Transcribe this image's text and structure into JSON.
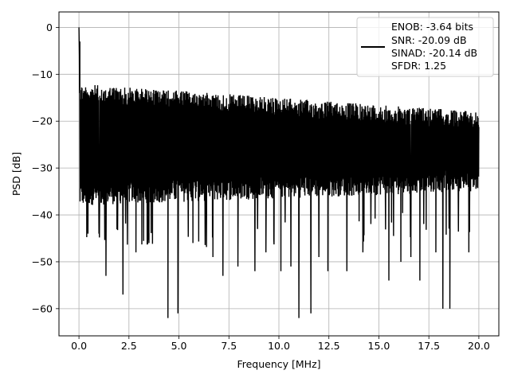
{
  "chart_data": {
    "type": "line",
    "title": "",
    "xlabel": "Frequency [MHz]",
    "ylabel": "PSD [dB]",
    "xlim": [
      -1.0,
      21.0
    ],
    "ylim": [
      -65.8,
      3.3
    ],
    "xticks": [
      0.0,
      2.5,
      5.0,
      7.5,
      10.0,
      12.5,
      15.0,
      17.5,
      20.0
    ],
    "xtick_labels": [
      "0.0",
      "2.5",
      "5.0",
      "7.5",
      "10.0",
      "12.5",
      "15.0",
      "17.5",
      "20.0"
    ],
    "yticks": [
      0,
      -10,
      -20,
      -30,
      -40,
      -50,
      -60
    ],
    "ytick_labels": [
      "0",
      "−10",
      "−20",
      "−30",
      "−40",
      "−50",
      "−60"
    ],
    "grid": true,
    "legend_position": "top-right",
    "legend_entries": [
      "ENOB: -3.64 bits",
      "SNR: -20.09 dB",
      "SINAD: -20.14 dB",
      "SFDR: 1.25"
    ],
    "series": [
      {
        "color": "#000000",
        "peak": {
          "x": 0.0,
          "y": 0.0
        },
        "upper_envelope_db": {
          "start": -12.0,
          "end": -18.0
        },
        "lower_envelope_db": {
          "start": -38.0,
          "end": -35.0
        },
        "deep_notches": [
          {
            "x": 0.45,
            "y": -44
          },
          {
            "x": 1.0,
            "y": -44
          },
          {
            "x": 1.35,
            "y": -53
          },
          {
            "x": 2.2,
            "y": -57
          },
          {
            "x": 2.85,
            "y": -48
          },
          {
            "x": 3.5,
            "y": -46
          },
          {
            "x": 4.45,
            "y": -62
          },
          {
            "x": 4.95,
            "y": -61
          },
          {
            "x": 5.7,
            "y": -46
          },
          {
            "x": 6.7,
            "y": -49
          },
          {
            "x": 7.2,
            "y": -53
          },
          {
            "x": 7.95,
            "y": -51
          },
          {
            "x": 8.8,
            "y": -52
          },
          {
            "x": 9.35,
            "y": -48
          },
          {
            "x": 10.1,
            "y": -52
          },
          {
            "x": 10.6,
            "y": -51
          },
          {
            "x": 11.0,
            "y": -62
          },
          {
            "x": 11.6,
            "y": -61
          },
          {
            "x": 12.0,
            "y": -49
          },
          {
            "x": 12.45,
            "y": -52
          },
          {
            "x": 13.4,
            "y": -52
          },
          {
            "x": 14.2,
            "y": -48
          },
          {
            "x": 15.5,
            "y": -54
          },
          {
            "x": 16.1,
            "y": -50
          },
          {
            "x": 16.6,
            "y": -49
          },
          {
            "x": 17.05,
            "y": -54
          },
          {
            "x": 17.85,
            "y": -48
          },
          {
            "x": 18.2,
            "y": -60
          },
          {
            "x": 18.55,
            "y": -60
          },
          {
            "x": 19.5,
            "y": -48
          }
        ]
      }
    ]
  }
}
